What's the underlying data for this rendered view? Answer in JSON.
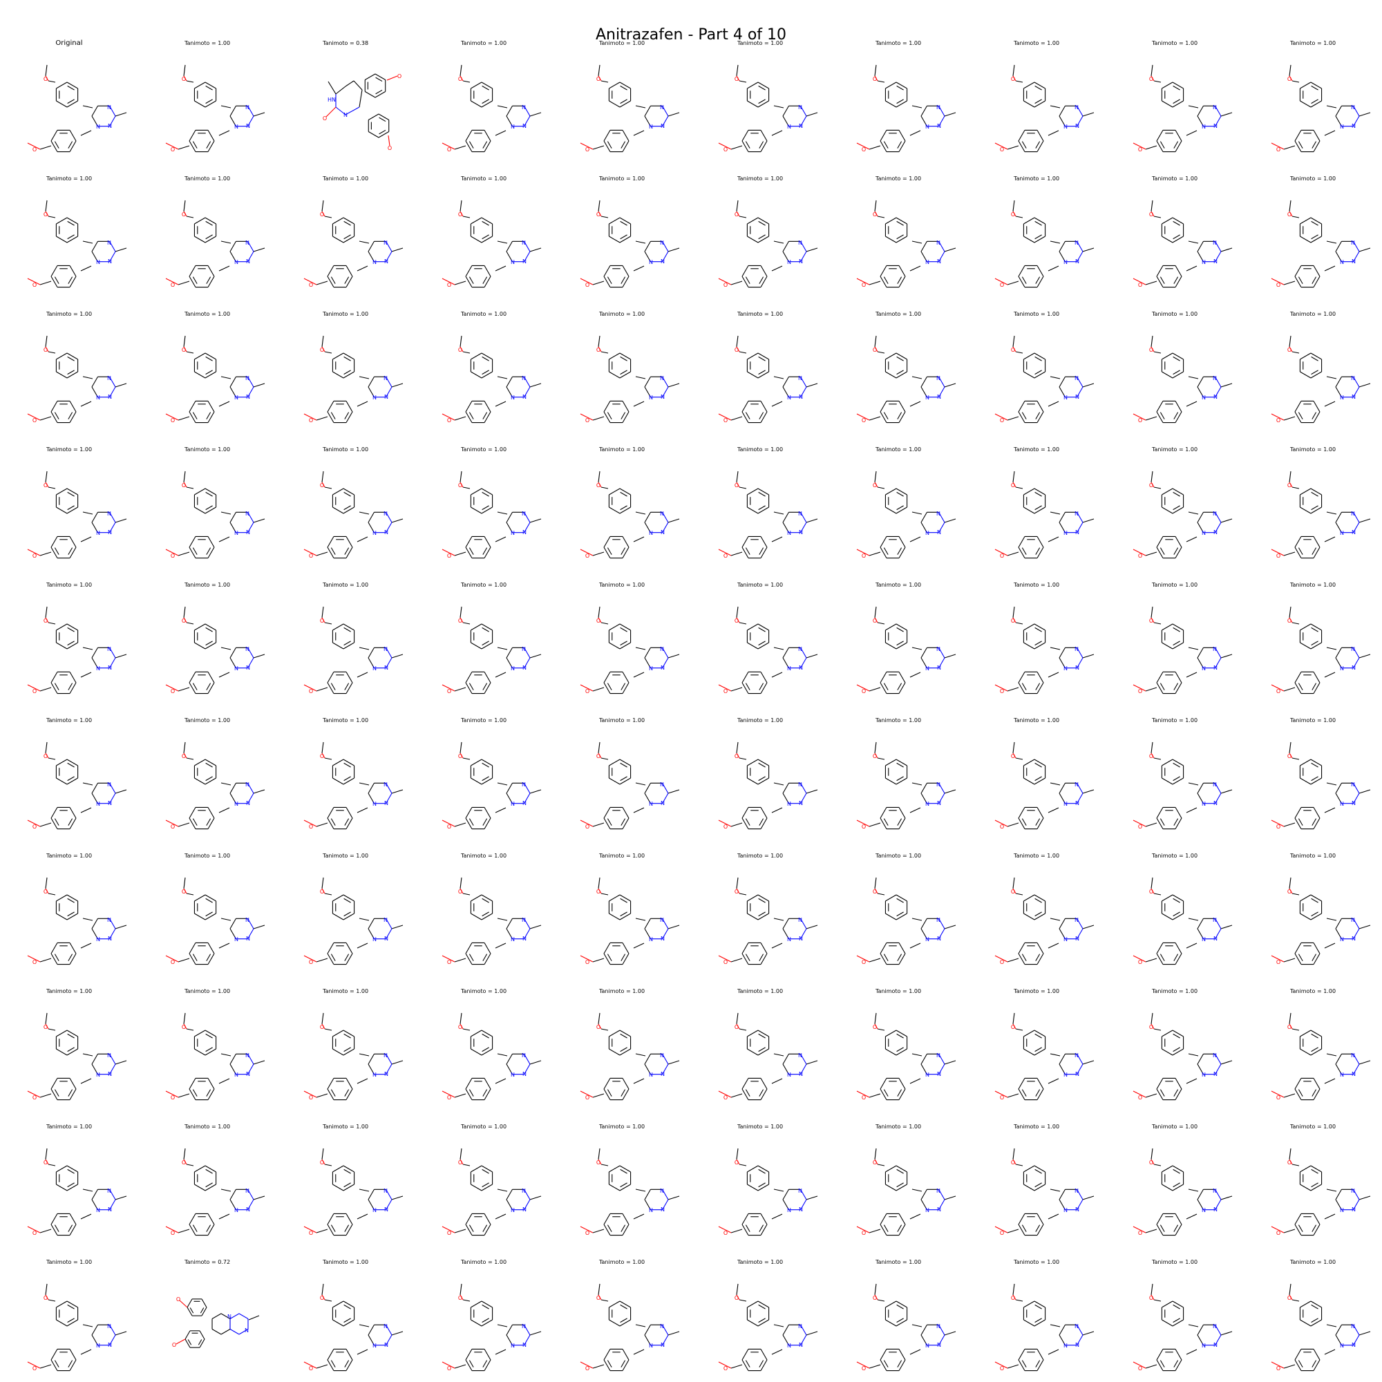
{
  "title": "Anitrazafen - Part 4 of 10",
  "colors": {
    "bond": "#000000",
    "oxygen": "#ff0000",
    "nitrogen": "#0000ff"
  },
  "cells": [
    {
      "label": "Original",
      "molecule": "anitrazafen"
    },
    {
      "label": "Tanimoto = 1.00",
      "molecule": "anitrazafen"
    },
    {
      "label": "Tanimoto = 0.38",
      "molecule": "triazepine"
    },
    {
      "label": "Tanimoto = 1.00",
      "molecule": "anitrazafen"
    },
    {
      "label": "Tanimoto = 1.00",
      "molecule": "anitrazafen"
    },
    {
      "label": "Tanimoto = 1.00",
      "molecule": "anitrazafen"
    },
    {
      "label": "Tanimoto = 1.00",
      "molecule": "anitrazafen"
    },
    {
      "label": "Tanimoto = 1.00",
      "molecule": "anitrazafen"
    },
    {
      "label": "Tanimoto = 1.00",
      "molecule": "anitrazafen"
    },
    {
      "label": "Tanimoto = 1.00",
      "molecule": "anitrazafen"
    },
    {
      "label": "Tanimoto = 1.00",
      "molecule": "anitrazafen"
    },
    {
      "label": "Tanimoto = 1.00",
      "molecule": "anitrazafen"
    },
    {
      "label": "Tanimoto = 1.00",
      "molecule": "anitrazafen"
    },
    {
      "label": "Tanimoto = 1.00",
      "molecule": "anitrazafen"
    },
    {
      "label": "Tanimoto = 1.00",
      "molecule": "anitrazafen"
    },
    {
      "label": "Tanimoto = 1.00",
      "molecule": "anitrazafen"
    },
    {
      "label": "Tanimoto = 1.00",
      "molecule": "anitrazafen"
    },
    {
      "label": "Tanimoto = 1.00",
      "molecule": "anitrazafen"
    },
    {
      "label": "Tanimoto = 1.00",
      "molecule": "anitrazafen"
    },
    {
      "label": "Tanimoto = 1.00",
      "molecule": "anitrazafen"
    },
    {
      "label": "Tanimoto = 1.00",
      "molecule": "anitrazafen"
    },
    {
      "label": "Tanimoto = 1.00",
      "molecule": "anitrazafen"
    },
    {
      "label": "Tanimoto = 1.00",
      "molecule": "anitrazafen"
    },
    {
      "label": "Tanimoto = 1.00",
      "molecule": "anitrazafen"
    },
    {
      "label": "Tanimoto = 1.00",
      "molecule": "anitrazafen"
    },
    {
      "label": "Tanimoto = 1.00",
      "molecule": "anitrazafen"
    },
    {
      "label": "Tanimoto = 1.00",
      "molecule": "anitrazafen"
    },
    {
      "label": "Tanimoto = 1.00",
      "molecule": "anitrazafen"
    },
    {
      "label": "Tanimoto = 1.00",
      "molecule": "anitrazafen"
    },
    {
      "label": "Tanimoto = 1.00",
      "molecule": "anitrazafen"
    },
    {
      "label": "Tanimoto = 1.00",
      "molecule": "anitrazafen"
    },
    {
      "label": "Tanimoto = 1.00",
      "molecule": "anitrazafen"
    },
    {
      "label": "Tanimoto = 1.00",
      "molecule": "anitrazafen"
    },
    {
      "label": "Tanimoto = 1.00",
      "molecule": "anitrazafen"
    },
    {
      "label": "Tanimoto = 1.00",
      "molecule": "anitrazafen"
    },
    {
      "label": "Tanimoto = 1.00",
      "molecule": "anitrazafen"
    },
    {
      "label": "Tanimoto = 1.00",
      "molecule": "anitrazafen"
    },
    {
      "label": "Tanimoto = 1.00",
      "molecule": "anitrazafen"
    },
    {
      "label": "Tanimoto = 1.00",
      "molecule": "anitrazafen"
    },
    {
      "label": "Tanimoto = 1.00",
      "molecule": "anitrazafen"
    },
    {
      "label": "Tanimoto = 1.00",
      "molecule": "anitrazafen"
    },
    {
      "label": "Tanimoto = 1.00",
      "molecule": "anitrazafen"
    },
    {
      "label": "Tanimoto = 1.00",
      "molecule": "anitrazafen"
    },
    {
      "label": "Tanimoto = 1.00",
      "molecule": "anitrazafen"
    },
    {
      "label": "Tanimoto = 1.00",
      "molecule": "anitrazafen"
    },
    {
      "label": "Tanimoto = 1.00",
      "molecule": "anitrazafen"
    },
    {
      "label": "Tanimoto = 1.00",
      "molecule": "anitrazafen"
    },
    {
      "label": "Tanimoto = 1.00",
      "molecule": "anitrazafen"
    },
    {
      "label": "Tanimoto = 1.00",
      "molecule": "anitrazafen"
    },
    {
      "label": "Tanimoto = 1.00",
      "molecule": "anitrazafen"
    },
    {
      "label": "Tanimoto = 1.00",
      "molecule": "anitrazafen"
    },
    {
      "label": "Tanimoto = 1.00",
      "molecule": "anitrazafen"
    },
    {
      "label": "Tanimoto = 1.00",
      "molecule": "anitrazafen"
    },
    {
      "label": "Tanimoto = 1.00",
      "molecule": "anitrazafen"
    },
    {
      "label": "Tanimoto = 1.00",
      "molecule": "anitrazafen"
    },
    {
      "label": "Tanimoto = 1.00",
      "molecule": "anitrazafen"
    },
    {
      "label": "Tanimoto = 1.00",
      "molecule": "anitrazafen"
    },
    {
      "label": "Tanimoto = 1.00",
      "molecule": "anitrazafen"
    },
    {
      "label": "Tanimoto = 1.00",
      "molecule": "anitrazafen"
    },
    {
      "label": "Tanimoto = 1.00",
      "molecule": "anitrazafen"
    },
    {
      "label": "Tanimoto = 1.00",
      "molecule": "anitrazafen"
    },
    {
      "label": "Tanimoto = 1.00",
      "molecule": "anitrazafen"
    },
    {
      "label": "Tanimoto = 1.00",
      "molecule": "anitrazafen"
    },
    {
      "label": "Tanimoto = 1.00",
      "molecule": "anitrazafen"
    },
    {
      "label": "Tanimoto = 1.00",
      "molecule": "anitrazafen"
    },
    {
      "label": "Tanimoto = 1.00",
      "molecule": "anitrazafen"
    },
    {
      "label": "Tanimoto = 1.00",
      "molecule": "anitrazafen"
    },
    {
      "label": "Tanimoto = 1.00",
      "molecule": "anitrazafen"
    },
    {
      "label": "Tanimoto = 1.00",
      "molecule": "anitrazafen"
    },
    {
      "label": "Tanimoto = 1.00",
      "molecule": "anitrazafen"
    },
    {
      "label": "Tanimoto = 1.00",
      "molecule": "anitrazafen"
    },
    {
      "label": "Tanimoto = 1.00",
      "molecule": "anitrazafen"
    },
    {
      "label": "Tanimoto = 1.00",
      "molecule": "anitrazafen"
    },
    {
      "label": "Tanimoto = 1.00",
      "molecule": "anitrazafen"
    },
    {
      "label": "Tanimoto = 1.00",
      "molecule": "anitrazafen"
    },
    {
      "label": "Tanimoto = 1.00",
      "molecule": "anitrazafen"
    },
    {
      "label": "Tanimoto = 1.00",
      "molecule": "anitrazafen"
    },
    {
      "label": "Tanimoto = 1.00",
      "molecule": "anitrazafen"
    },
    {
      "label": "Tanimoto = 1.00",
      "molecule": "anitrazafen"
    },
    {
      "label": "Tanimoto = 1.00",
      "molecule": "anitrazafen"
    },
    {
      "label": "Tanimoto = 1.00",
      "molecule": "anitrazafen"
    },
    {
      "label": "Tanimoto = 1.00",
      "molecule": "anitrazafen"
    },
    {
      "label": "Tanimoto = 1.00",
      "molecule": "anitrazafen"
    },
    {
      "label": "Tanimoto = 1.00",
      "molecule": "anitrazafen"
    },
    {
      "label": "Tanimoto = 1.00",
      "molecule": "anitrazafen"
    },
    {
      "label": "Tanimoto = 1.00",
      "molecule": "anitrazafen"
    },
    {
      "label": "Tanimoto = 1.00",
      "molecule": "anitrazafen"
    },
    {
      "label": "Tanimoto = 1.00",
      "molecule": "anitrazafen"
    },
    {
      "label": "Tanimoto = 1.00",
      "molecule": "anitrazafen"
    },
    {
      "label": "Tanimoto = 1.00",
      "molecule": "anitrazafen"
    },
    {
      "label": "Tanimoto = 1.00",
      "molecule": "anitrazafen"
    },
    {
      "label": "Tanimoto = 0.72",
      "molecule": "pteridine"
    },
    {
      "label": "Tanimoto = 1.00",
      "molecule": "anitrazafen"
    },
    {
      "label": "Tanimoto = 1.00",
      "molecule": "anitrazafen"
    },
    {
      "label": "Tanimoto = 1.00",
      "molecule": "anitrazafen"
    },
    {
      "label": "Tanimoto = 1.00",
      "molecule": "anitrazafen"
    },
    {
      "label": "Tanimoto = 1.00",
      "molecule": "anitrazafen"
    },
    {
      "label": "Tanimoto = 1.00",
      "molecule": "anitrazafen"
    },
    {
      "label": "Tanimoto = 1.00",
      "molecule": "anitrazafen"
    },
    {
      "label": "Tanimoto = 1.00",
      "molecule": "anitrazafen"
    }
  ]
}
